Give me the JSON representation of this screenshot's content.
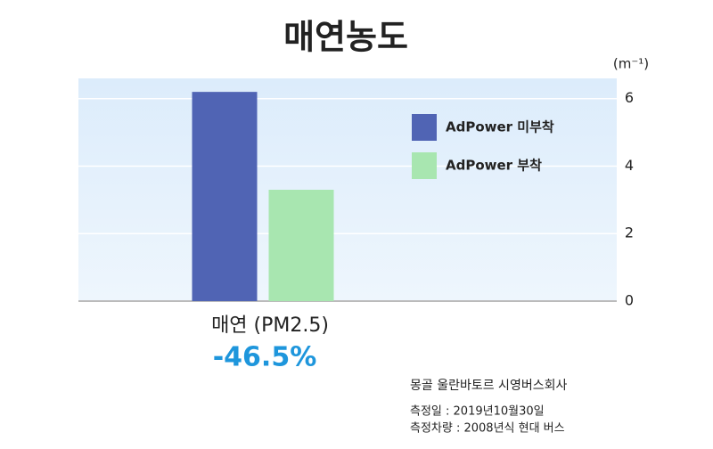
{
  "chart_data": {
    "type": "bar",
    "title": "매연농도",
    "y_unit": "(m⁻¹)",
    "categories": [
      "매연 (PM2.5)"
    ],
    "series": [
      {
        "name": "AdPower 미부착",
        "color": "#5064b4",
        "values": [
          6.2
        ]
      },
      {
        "name": "AdPower 부착",
        "color": "#a8e6b0",
        "values": [
          3.3
        ]
      }
    ],
    "ylim": [
      0,
      6.6
    ],
    "yticks": [
      0,
      2,
      4,
      6
    ],
    "grid": true,
    "legend": "upper right",
    "annotation": "-46.5%",
    "notes": [
      "몽골 울란바토르 시영버스회사",
      "측정일 : 2019년10월30일",
      "측정차량 : 2008년식 현대 버스"
    ]
  }
}
